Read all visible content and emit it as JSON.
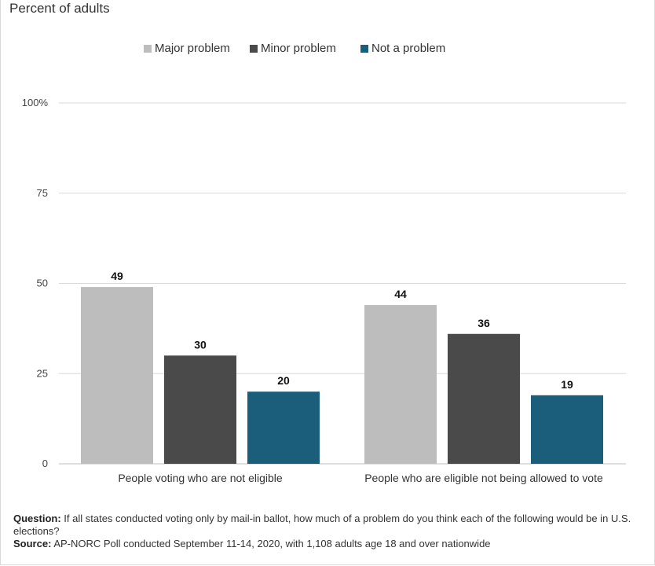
{
  "subtitle": "Percent of adults",
  "legend": [
    {
      "label": "Major problem",
      "color": "#bdbdbd"
    },
    {
      "label": "Minor problem",
      "color": "#4a4a4a"
    },
    {
      "label": "Not a problem",
      "color": "#1b5e7b"
    }
  ],
  "chart_data": {
    "type": "bar",
    "categories": [
      "People voting who are not eligible",
      "People who are eligible not being allowed to vote"
    ],
    "series": [
      {
        "name": "Major problem",
        "values": [
          49,
          44
        ],
        "color": "#bdbdbd"
      },
      {
        "name": "Minor problem",
        "values": [
          30,
          36
        ],
        "color": "#4a4a4a"
      },
      {
        "name": "Not a problem",
        "values": [
          20,
          19
        ],
        "color": "#1b5e7b"
      }
    ],
    "ylim": [
      0,
      100
    ],
    "yticks": [
      0,
      25,
      50,
      75,
      100
    ],
    "ytick_labels": [
      "0",
      "25",
      "50",
      "75",
      "100%"
    ],
    "grid": true,
    "legend_position": "top"
  },
  "footer": {
    "question_label": "Question:",
    "question_text": "If all states conducted voting only by mail-in ballot, how much of a problem do you think each of the following would be in U.S. elections?",
    "source_label": "Source:",
    "source_text": "AP-NORC Poll conducted September 11-14, 2020, with 1,108 adults age 18 and over nationwide"
  }
}
